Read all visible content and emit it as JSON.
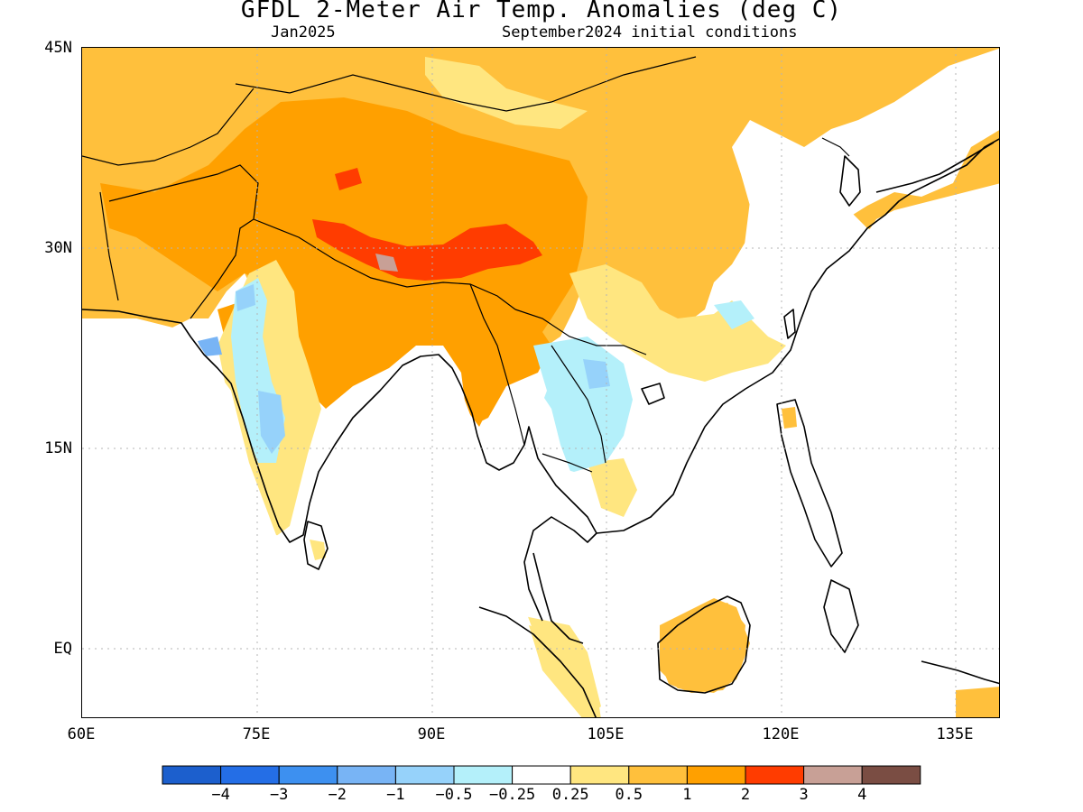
{
  "title": "GFDL 2-Meter Air Temp. Anomalies (deg C)",
  "subtitle_left": "Jan2025",
  "subtitle_right": "September2024 initial conditions",
  "lat_labels": [
    "45N",
    "30N",
    "15N",
    "EQ"
  ],
  "lon_labels": [
    "60E",
    "75E",
    "90E",
    "105E",
    "120E",
    "135E"
  ],
  "colorbar": {
    "colors": [
      "#1c5fcd",
      "#246ee6",
      "#3d90f0",
      "#78b4f5",
      "#96d2fa",
      "#b4f0fa",
      "#ffffff",
      "#ffe680",
      "#ffc03c",
      "#ffa000",
      "#ff3c00",
      "#c8a096",
      "#7a4d43"
    ],
    "labels": [
      "-4",
      "-3",
      "-2",
      "-1",
      "-0.5",
      "-0.25",
      "0.25",
      "0.5",
      "1",
      "2",
      "3",
      "4"
    ]
  }
}
